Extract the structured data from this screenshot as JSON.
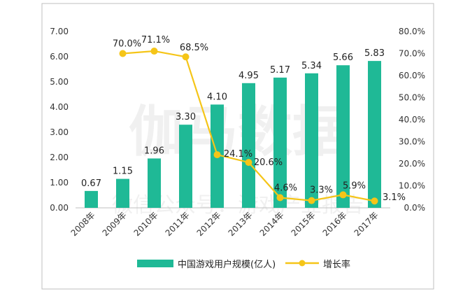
{
  "chart_data": {
    "type": "bar",
    "categories": [
      "2008年",
      "2009年",
      "2010年",
      "2011年",
      "2012年",
      "2013年",
      "2014年",
      "2015年",
      "2016年",
      "2017年"
    ],
    "series": [
      {
        "name": "中国游戏用户规模(亿人)",
        "kind": "bar",
        "axis": "left",
        "values": [
          0.67,
          1.15,
          1.96,
          3.3,
          4.1,
          4.95,
          5.17,
          5.34,
          5.66,
          5.83
        ],
        "labels": [
          "0.67",
          "1.15",
          "1.96",
          "3.30",
          "4.10",
          "4.95",
          "5.17",
          "5.34",
          "5.66",
          "5.83"
        ],
        "color": "#1fb996"
      },
      {
        "name": "增长率",
        "kind": "line",
        "axis": "right",
        "values": [
          null,
          70.0,
          71.1,
          68.5,
          24.1,
          20.6,
          4.6,
          3.3,
          5.9,
          3.1
        ],
        "labels": [
          null,
          "70.0%",
          "71.1%",
          "68.5%",
          "24.1%",
          "20.6%",
          "4.6%",
          "3.3%",
          "5.9%",
          "3.1%"
        ],
        "color": "#f5c518"
      }
    ],
    "y_left": {
      "ylim": [
        0,
        7
      ],
      "ticks": [
        "0.00",
        "1.00",
        "2.00",
        "3.00",
        "4.00",
        "5.00",
        "6.00",
        "7.00"
      ]
    },
    "y_right": {
      "ylim": [
        0,
        80
      ],
      "ticks": [
        "0.0%",
        "10.0%",
        "20.0%",
        "30.0%",
        "40.0%",
        "50.0%",
        "60.0%",
        "70.0%",
        "80.0%"
      ]
    },
    "grid": false,
    "legend": "bottom",
    "watermark": {
      "main": "伽马数据",
      "sub": "微信公众号：游戏产业报告"
    }
  }
}
